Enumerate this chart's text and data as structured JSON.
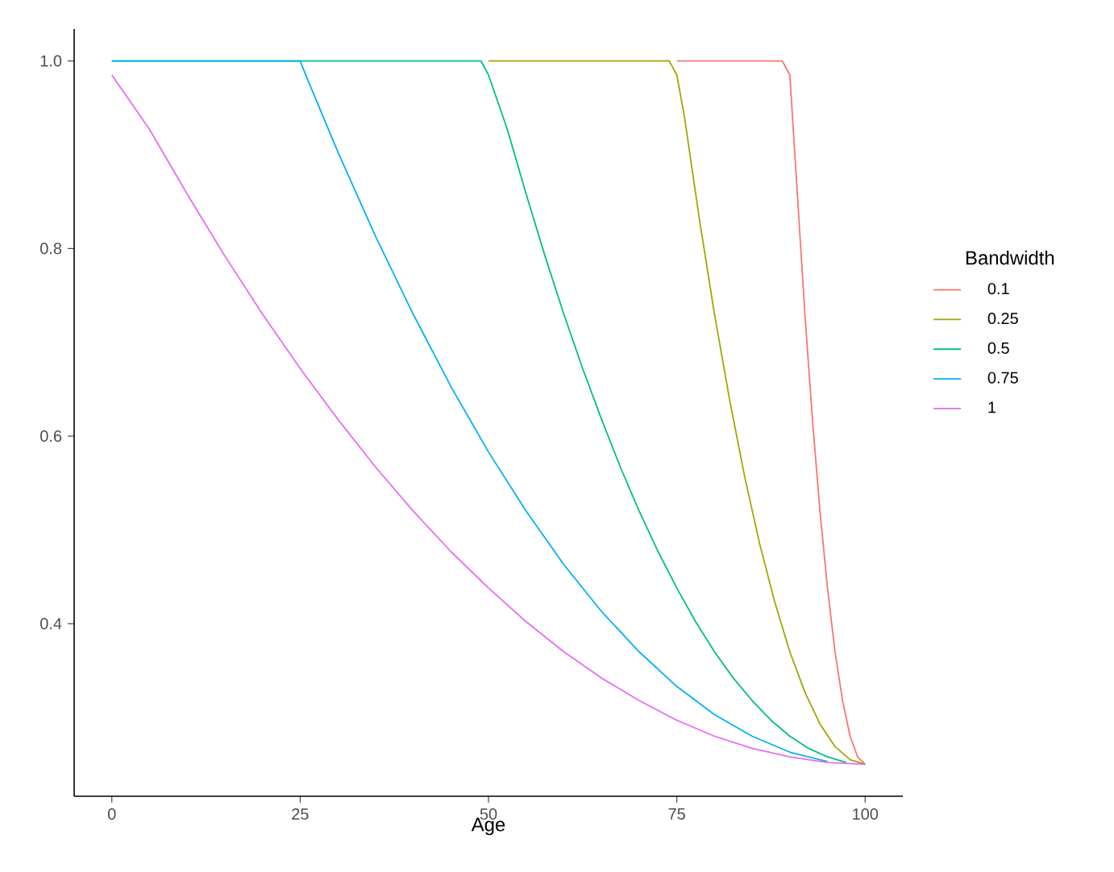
{
  "chart_data": {
    "type": "line",
    "xlabel": "Age",
    "legend_title": "Bandwidth",
    "legend": "right",
    "grid": false,
    "marker": "none",
    "line_style": "solid",
    "xlim": [
      -5,
      105
    ],
    "ylim": [
      0.216,
      1.034
    ],
    "xticks": [
      0,
      25,
      50,
      75,
      100
    ],
    "yticks": [
      {
        "value": 0.4,
        "label": "0.4"
      },
      {
        "value": 0.6,
        "label": "0.6"
      },
      {
        "value": 0.8,
        "label": "0.8"
      },
      {
        "value": 1,
        "label": "1.0"
      }
    ],
    "series": [
      {
        "name": "0.1",
        "color": "#f8766d",
        "x": [
          75,
          89,
          90,
          91,
          92,
          93,
          94,
          95,
          96,
          97,
          98,
          99,
          100
        ],
        "values": [
          1,
          1,
          0.985,
          0.858,
          0.73,
          0.618,
          0.52,
          0.438,
          0.37,
          0.318,
          0.28,
          0.258,
          0.25
        ]
      },
      {
        "name": "0.25",
        "color": "#a3a500",
        "x": [
          50,
          74,
          75,
          76,
          78,
          80,
          82,
          84,
          86,
          88,
          90,
          92,
          94,
          96,
          98,
          100
        ],
        "values": [
          1,
          1,
          0.985,
          0.941,
          0.831,
          0.73,
          0.639,
          0.557,
          0.485,
          0.423,
          0.37,
          0.327,
          0.293,
          0.269,
          0.255,
          0.25
        ]
      },
      {
        "name": "0.5",
        "color": "#00bf7d",
        "x": [
          0,
          49,
          50,
          52.5,
          55,
          57.5,
          60,
          62.5,
          65,
          67.5,
          70,
          72.5,
          75,
          77.5,
          80,
          82.5,
          85,
          87.5,
          90,
          92.5,
          95,
          97.5
        ],
        "values": [
          1,
          1,
          0.985,
          0.927,
          0.858,
          0.792,
          0.73,
          0.672,
          0.618,
          0.567,
          0.52,
          0.477,
          0.438,
          0.402,
          0.37,
          0.342,
          0.318,
          0.297,
          0.28,
          0.267,
          0.258,
          0.252
        ]
      },
      {
        "name": "0.75",
        "color": "#00b0f6",
        "x": [
          0,
          25,
          26,
          30,
          35,
          40,
          45,
          50,
          55,
          60,
          65,
          70,
          75,
          80,
          85,
          90,
          95
        ],
        "values": [
          1,
          1,
          0.98,
          0.903,
          0.813,
          0.73,
          0.653,
          0.583,
          0.52,
          0.463,
          0.413,
          0.37,
          0.333,
          0.303,
          0.28,
          0.263,
          0.253
        ]
      },
      {
        "name": "1",
        "color": "#e76bf3",
        "x": [
          0,
          5,
          10,
          15,
          20,
          25,
          30,
          35,
          40,
          45,
          50,
          55,
          60,
          65,
          70,
          75,
          80,
          85,
          90,
          95,
          100
        ],
        "values": [
          0.985,
          0.927,
          0.858,
          0.792,
          0.73,
          0.672,
          0.618,
          0.567,
          0.52,
          0.477,
          0.438,
          0.402,
          0.37,
          0.342,
          0.318,
          0.297,
          0.28,
          0.267,
          0.258,
          0.252,
          0.25
        ]
      }
    ]
  }
}
